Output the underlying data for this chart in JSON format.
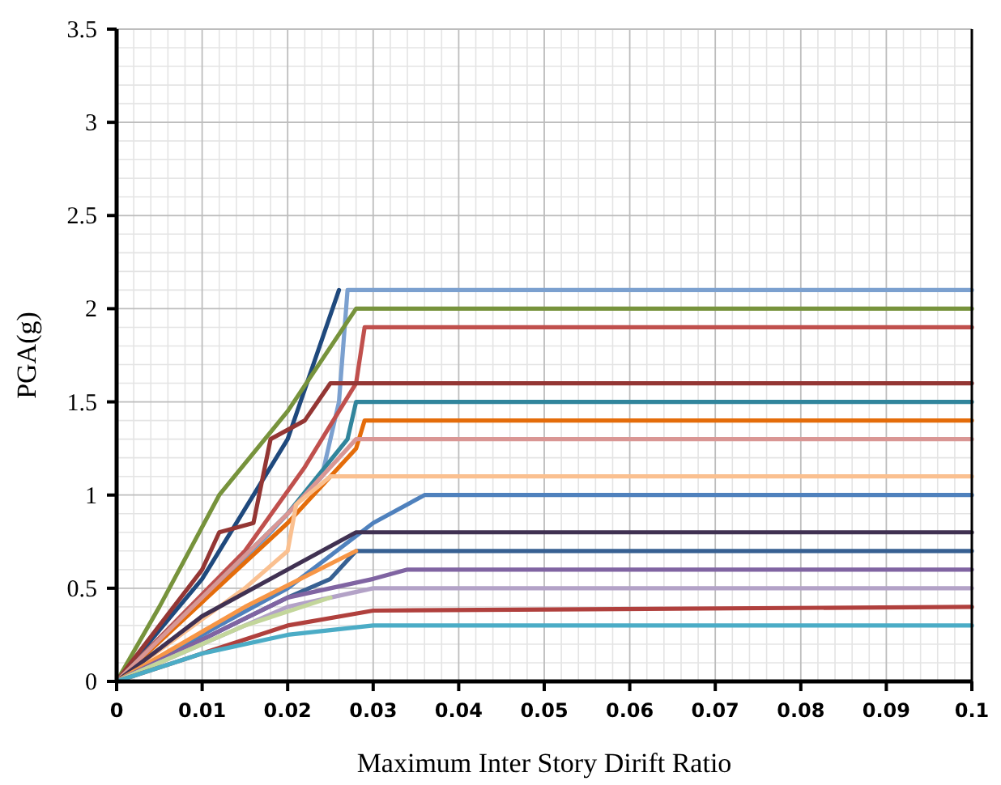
{
  "chart_data": {
    "type": "line",
    "xlabel": "Maximum Inter Story Dirift Ratio",
    "ylabel": "PGA(g)",
    "xlim": [
      0,
      0.1
    ],
    "ylim": [
      0,
      3.5
    ],
    "xticks": [
      0,
      0.01,
      0.02,
      0.03,
      0.04,
      0.05,
      0.06,
      0.07,
      0.08,
      0.09,
      0.1
    ],
    "yticks": [
      0,
      0.5,
      1,
      1.5,
      2,
      2.5,
      3,
      3.5
    ],
    "grid": true,
    "marker": "none",
    "line_style": "solid",
    "series": [
      {
        "color": "#1f497d",
        "x": [
          0,
          0.01,
          0.02,
          0.026
        ],
        "values": [
          0,
          0.55,
          1.3,
          2.1
        ]
      },
      {
        "color": "#7ba0cf",
        "x": [
          0,
          0.015,
          0.024,
          0.026,
          0.027,
          0.1
        ],
        "values": [
          0,
          0.65,
          1.1,
          1.5,
          2.1,
          2.1
        ]
      },
      {
        "color": "#77933c",
        "x": [
          0,
          0.005,
          0.012,
          0.02,
          0.028,
          0.1
        ],
        "values": [
          0,
          0.4,
          1.0,
          1.45,
          2.0,
          2.0
        ]
      },
      {
        "color": "#c0504d",
        "x": [
          0,
          0.015,
          0.022,
          0.028,
          0.029,
          0.1
        ],
        "values": [
          0,
          0.7,
          1.15,
          1.6,
          1.9,
          1.9
        ]
      },
      {
        "color": "#943634",
        "x": [
          0,
          0.01,
          0.012,
          0.016,
          0.018,
          0.022,
          0.025,
          0.1
        ],
        "values": [
          0,
          0.6,
          0.8,
          0.85,
          1.3,
          1.4,
          1.6,
          1.6
        ]
      },
      {
        "color": "#31859c",
        "x": [
          0,
          0.02,
          0.027,
          0.028,
          0.1
        ],
        "values": [
          0,
          0.9,
          1.3,
          1.5,
          1.5
        ]
      },
      {
        "color": "#e46c0a",
        "x": [
          0,
          0.02,
          0.028,
          0.029,
          0.1
        ],
        "values": [
          0,
          0.85,
          1.25,
          1.4,
          1.4
        ]
      },
      {
        "color": "#d99694",
        "x": [
          0,
          0.02,
          0.026,
          0.028,
          0.1
        ],
        "values": [
          0,
          0.9,
          1.2,
          1.3,
          1.3
        ]
      },
      {
        "color": "#fac090",
        "x": [
          0,
          0.015,
          0.02,
          0.021,
          0.025,
          0.1
        ],
        "values": [
          0,
          0.5,
          0.7,
          0.95,
          1.1,
          1.1
        ]
      },
      {
        "color": "#4f81bd",
        "x": [
          0,
          0.01,
          0.02,
          0.03,
          0.036,
          0.1
        ],
        "values": [
          0,
          0.25,
          0.5,
          0.85,
          1.0,
          1.0
        ]
      },
      {
        "color": "#403152",
        "x": [
          0,
          0.01,
          0.02,
          0.028,
          0.1
        ],
        "values": [
          0,
          0.35,
          0.6,
          0.8,
          0.8
        ]
      },
      {
        "color": "#376092",
        "x": [
          0,
          0.02,
          0.025,
          0.028,
          0.1
        ],
        "values": [
          0,
          0.45,
          0.55,
          0.7,
          0.7
        ]
      },
      {
        "color": "#f79646",
        "x": [
          0,
          0.015,
          0.028
        ],
        "values": [
          0,
          0.4,
          0.7
        ]
      },
      {
        "color": "#8064a2",
        "x": [
          0,
          0.02,
          0.03,
          0.034,
          0.1
        ],
        "values": [
          0,
          0.45,
          0.55,
          0.6,
          0.6
        ]
      },
      {
        "color": "#b3a2c7",
        "x": [
          0,
          0.02,
          0.03,
          0.1
        ],
        "values": [
          0,
          0.4,
          0.5,
          0.5
        ]
      },
      {
        "color": "#c3d69b",
        "x": [
          0,
          0.015,
          0.025
        ],
        "values": [
          0,
          0.3,
          0.45
        ]
      },
      {
        "color": "#b0403d",
        "x": [
          0,
          0.02,
          0.03,
          0.1
        ],
        "values": [
          0,
          0.3,
          0.38,
          0.4
        ]
      },
      {
        "color": "#4bacc6",
        "x": [
          0,
          0.01,
          0.02,
          0.03,
          0.1
        ],
        "values": [
          0,
          0.15,
          0.25,
          0.3,
          0.3
        ]
      }
    ]
  }
}
